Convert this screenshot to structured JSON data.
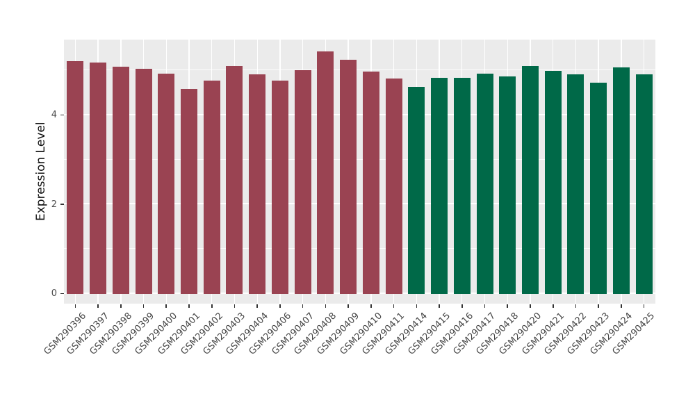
{
  "chart_data": {
    "type": "bar",
    "title": "",
    "xlabel": "",
    "ylabel": "Expression Level",
    "ylim": [
      -0.23,
      5.69
    ],
    "yticks": [
      0,
      2,
      4
    ],
    "ytick_labels": [
      "0",
      "2",
      "4"
    ],
    "minor_yticks": [
      1,
      3,
      5
    ],
    "grid": "on",
    "legend_position": "none",
    "panel_background": "#EBEBEB",
    "grid_color": "#FFFFFF",
    "axis_text_color": "#4D4D4D",
    "tick_mark_color": "#333333",
    "group_colors": {
      "groupA": "#9A4352",
      "groupB": "#006948"
    },
    "bars": [
      {
        "label": "GSM290396",
        "value": 5.21,
        "group": "groupA"
      },
      {
        "label": "GSM290397",
        "value": 5.17,
        "group": "groupA"
      },
      {
        "label": "GSM290398",
        "value": 5.08,
        "group": "groupA"
      },
      {
        "label": "GSM290399",
        "value": 5.03,
        "group": "groupA"
      },
      {
        "label": "GSM290400",
        "value": 4.93,
        "group": "groupA"
      },
      {
        "label": "GSM290401",
        "value": 4.59,
        "group": "groupA"
      },
      {
        "label": "GSM290402",
        "value": 4.77,
        "group": "groupA"
      },
      {
        "label": "GSM290403",
        "value": 5.09,
        "group": "groupA"
      },
      {
        "label": "GSM290404",
        "value": 4.91,
        "group": "groupA"
      },
      {
        "label": "GSM290406",
        "value": 4.77,
        "group": "groupA"
      },
      {
        "label": "GSM290407",
        "value": 5.01,
        "group": "groupA"
      },
      {
        "label": "GSM290408",
        "value": 5.42,
        "group": "groupA"
      },
      {
        "label": "GSM290409",
        "value": 5.24,
        "group": "groupA"
      },
      {
        "label": "GSM290410",
        "value": 4.97,
        "group": "groupA"
      },
      {
        "label": "GSM290411",
        "value": 4.82,
        "group": "groupA"
      },
      {
        "label": "GSM290414",
        "value": 4.63,
        "group": "groupB"
      },
      {
        "label": "GSM290415",
        "value": 4.83,
        "group": "groupB"
      },
      {
        "label": "GSM290416",
        "value": 4.83,
        "group": "groupB"
      },
      {
        "label": "GSM290417",
        "value": 4.93,
        "group": "groupB"
      },
      {
        "label": "GSM290418",
        "value": 4.86,
        "group": "groupB"
      },
      {
        "label": "GSM290420",
        "value": 5.1,
        "group": "groupB"
      },
      {
        "label": "GSM290421",
        "value": 4.99,
        "group": "groupB"
      },
      {
        "label": "GSM290422",
        "value": 4.91,
        "group": "groupB"
      },
      {
        "label": "GSM290423",
        "value": 4.73,
        "group": "groupB"
      },
      {
        "label": "GSM290424",
        "value": 5.07,
        "group": "groupB"
      },
      {
        "label": "GSM290425",
        "value": 4.91,
        "group": "groupB"
      }
    ]
  }
}
